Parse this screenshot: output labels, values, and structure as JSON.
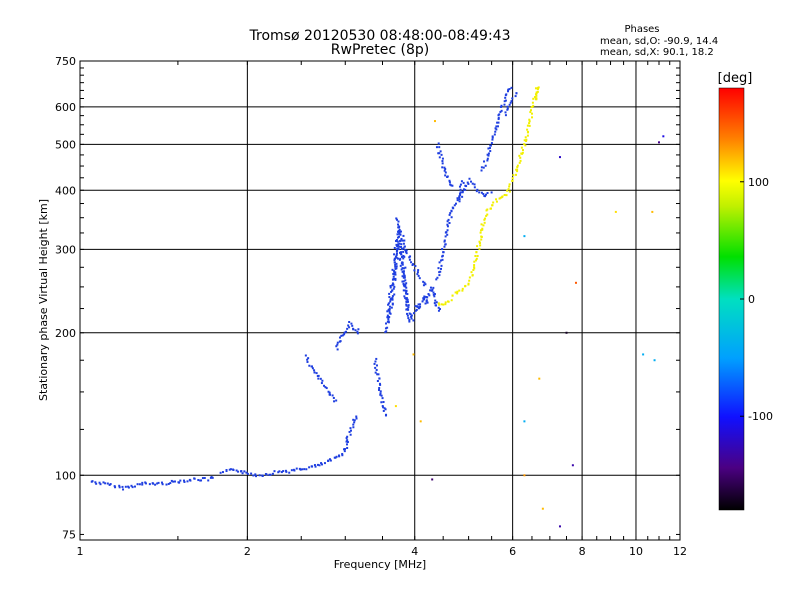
{
  "chart_data": {
    "type": "scatter",
    "title": "Tromsø 20120530 08:48:00-08:49:43",
    "subtitle": "RwPretec (8p)",
    "xlabel": "Frequency [MHz]",
    "ylabel": "Stationary phase Virtual Height [km]",
    "x_scale": "log",
    "y_scale": "log",
    "xlim": [
      1,
      12
    ],
    "ylim": [
      73,
      750
    ],
    "x_ticks": [
      1,
      2,
      4,
      6,
      8,
      10,
      12
    ],
    "y_ticks": [
      75,
      100,
      200,
      300,
      400,
      500,
      600,
      750
    ],
    "x_gridlines": [
      2,
      4,
      6,
      8,
      10
    ],
    "y_gridlines": [
      100,
      200,
      300,
      400,
      500,
      600
    ],
    "grid": true,
    "legend": {
      "title": "Phases",
      "lines": [
        "mean, sd,O: -90.9, 14.4",
        "mean, sd,X:  90.1, 18.2"
      ]
    },
    "colorbar": {
      "label": "[deg]",
      "range": [
        -180,
        180
      ],
      "ticks": [
        -100,
        0,
        100
      ],
      "colormap": "rainbow"
    },
    "series": [
      {
        "name": "O-mode",
        "mean_phase_deg": -90.9,
        "color": "#1f3fe0",
        "segments": [
          {
            "x": [
              1.05,
              1.1,
              1.15,
              1.2,
              1.25,
              1.3,
              1.4,
              1.5,
              1.6,
              1.7,
              1.75
            ],
            "y": [
              97,
              96,
              95,
              94,
              95,
              96,
              96,
              97,
              98,
              98,
              99
            ]
          },
          {
            "x": [
              1.8,
              1.9,
              2.0,
              2.1,
              2.2,
              2.3,
              2.4,
              2.5,
              2.6,
              2.7,
              2.8,
              2.9,
              3.0,
              3.05
            ],
            "y": [
              101,
              103,
              101,
              100,
              101,
              102,
              102,
              103,
              104,
              105,
              107,
              109,
              113,
              118
            ]
          },
          {
            "x": [
              3.0,
              3.05,
              3.1,
              3.15
            ],
            "y": [
              118,
              122,
              128,
              135
            ]
          },
          {
            "x": [
              2.55,
              2.6,
              2.7,
              2.8,
              2.9
            ],
            "y": [
              178,
              170,
              160,
              150,
              142
            ]
          },
          {
            "x": [
              2.9,
              2.95,
              3.0,
              3.05,
              3.1,
              3.15,
              3.2
            ],
            "y": [
              185,
              195,
              198,
              210,
              205,
              200,
              205
            ]
          },
          {
            "x": [
              3.4,
              3.45,
              3.5,
              3.55
            ],
            "y": [
              175,
              155,
              145,
              132
            ]
          },
          {
            "x": [
              3.6,
              3.65,
              3.7,
              3.75,
              3.8,
              3.85,
              3.9,
              3.95,
              4.0
            ],
            "y": [
              210,
              240,
              280,
              310,
              270,
              240,
              225,
              215,
              210
            ]
          },
          {
            "x": [
              3.55,
              3.6,
              3.65,
              3.7,
              3.75,
              3.8,
              3.85,
              3.9
            ],
            "y": [
              200,
              230,
              260,
              300,
              330,
              300,
              250,
              210
            ]
          },
          {
            "x": [
              4.0,
              4.05,
              4.1,
              4.15,
              4.2,
              4.25,
              4.3,
              4.35,
              4.4,
              4.45
            ],
            "y": [
              220,
              230,
              225,
              240,
              230,
              245,
              250,
              235,
              225,
              220
            ]
          },
          {
            "x": [
              4.4,
              4.5,
              4.6,
              4.7,
              4.8,
              4.9
            ],
            "y": [
              260,
              300,
              340,
              370,
              390,
              420
            ]
          },
          {
            "x": [
              4.8,
              4.9,
              5.0,
              5.1,
              5.2,
              5.3,
              5.4,
              5.5
            ],
            "y": [
              380,
              400,
              420,
              410,
              400,
              390,
              390,
              400
            ]
          },
          {
            "x": [
              3.7,
              3.8,
              3.9,
              4.0,
              4.1,
              4.2
            ],
            "y": [
              350,
              320,
              290,
              275,
              260,
              250
            ]
          },
          {
            "x": [
              4.4,
              4.5,
              4.6,
              4.7
            ],
            "y": [
              500,
              450,
              420,
              405
            ]
          },
          {
            "x": [
              5.3,
              5.4,
              5.5,
              5.6,
              5.7,
              5.8,
              5.9,
              6.0
            ],
            "y": [
              440,
              470,
              500,
              540,
              580,
              620,
              650,
              660
            ]
          },
          {
            "x": [
              5.8,
              5.9,
              6.0,
              6.1
            ],
            "y": [
              580,
              600,
              620,
              650
            ]
          }
        ]
      },
      {
        "name": "X-mode",
        "mean_phase_deg": 90.1,
        "color": "#f2f000",
        "segments": [
          {
            "x": [
              4.4,
              4.5,
              4.6,
              4.7,
              4.8,
              4.9,
              5.0,
              5.1,
              5.2,
              5.3,
              5.4,
              5.5,
              5.6,
              5.7,
              5.8,
              5.9,
              6.0
            ],
            "y": [
              230,
              228,
              232,
              240,
              245,
              248,
              255,
              270,
              300,
              340,
              360,
              370,
              380,
              385,
              390,
              400,
              420
            ]
          },
          {
            "x": [
              6.0,
              6.1,
              6.2,
              6.3,
              6.4,
              6.5,
              6.6,
              6.7
            ],
            "y": [
              420,
              440,
              470,
              500,
              540,
              590,
              630,
              660
            ]
          },
          {
            "x": [
              6.55,
              6.6,
              6.65,
              6.7
            ],
            "y": [
              620,
              640,
              655,
              665
            ]
          }
        ]
      }
    ],
    "scattered_points": [
      {
        "x": 3.98,
        "y": 180,
        "phase": 120
      },
      {
        "x": 3.7,
        "y": 140,
        "phase": 110
      },
      {
        "x": 4.1,
        "y": 130,
        "phase": 120
      },
      {
        "x": 4.3,
        "y": 98,
        "phase": -150
      },
      {
        "x": 4.35,
        "y": 560,
        "phase": 120
      },
      {
        "x": 6.3,
        "y": 320,
        "phase": -40
      },
      {
        "x": 6.3,
        "y": 100,
        "phase": 130
      },
      {
        "x": 6.3,
        "y": 130,
        "phase": -40
      },
      {
        "x": 6.7,
        "y": 160,
        "phase": 120
      },
      {
        "x": 6.8,
        "y": 85,
        "phase": 120
      },
      {
        "x": 7.3,
        "y": 470,
        "phase": -120
      },
      {
        "x": 7.5,
        "y": 200,
        "phase": -170
      },
      {
        "x": 7.8,
        "y": 255,
        "phase": 150
      },
      {
        "x": 7.7,
        "y": 105,
        "phase": -130
      },
      {
        "x": 7.3,
        "y": 78,
        "phase": -130
      },
      {
        "x": 9.2,
        "y": 360,
        "phase": 110
      },
      {
        "x": 10.7,
        "y": 360,
        "phase": 120
      },
      {
        "x": 10.3,
        "y": 180,
        "phase": -40
      },
      {
        "x": 10.8,
        "y": 175,
        "phase": -40
      },
      {
        "x": 11.0,
        "y": 505,
        "phase": -140
      },
      {
        "x": 11.2,
        "y": 520,
        "phase": -110
      }
    ]
  }
}
